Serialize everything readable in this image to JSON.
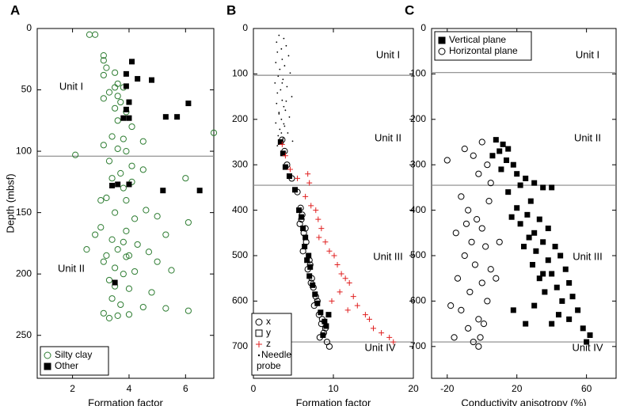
{
  "chart_data": [
    {
      "type": "scatter",
      "panel_label": "A",
      "xlabel": "Formation factor",
      "ylabel": "Depth (mbsf)",
      "xlim": [
        0.75,
        7
      ],
      "xticks": [
        2,
        4,
        6
      ],
      "ylim": [
        0,
        285
      ],
      "yticks": [
        0,
        50,
        100,
        150,
        200,
        250
      ],
      "y_inverted": true,
      "hlines": [
        104
      ],
      "annotations": [
        "Unit I",
        "Unit II"
      ],
      "legend": "lower left",
      "series": [
        {
          "name": "Silty clay",
          "color": "#2e7d32",
          "marker": "circle",
          "x": [
            2.6,
            2.8,
            3.1,
            3.1,
            3.2,
            3.1,
            3.5,
            3.6,
            3.5,
            3.8,
            3.3,
            3.6,
            3.1,
            3.7,
            3.5,
            3.9,
            3.6,
            4.1,
            7.0,
            3.4,
            3.8,
            4.5,
            3.1,
            3.6,
            2.1,
            3.9,
            3.3,
            4.1,
            4.5,
            3.7,
            3.4,
            4.1,
            6.0,
            3.2,
            3.9,
            4.6,
            3.5,
            4.2,
            5.0,
            6.1,
            3.0,
            3.9,
            5.3,
            3.4,
            3.8,
            4.3,
            2.5,
            3.6,
            4.7,
            3.2,
            3.9,
            5.0,
            3.1,
            3.5,
            4.2,
            3.8,
            5.5,
            3.3,
            4.0,
            4.8,
            3.4,
            3.7,
            4.5,
            5.3,
            6.1,
            3.1,
            3.6,
            4.0,
            3.3,
            2.8,
            3.0,
            3.8,
            4.0,
            3.5
          ],
          "values": [
            5,
            5,
            22,
            26,
            32,
            38,
            36,
            45,
            48,
            48,
            52,
            55,
            57,
            60,
            65,
            68,
            75,
            80,
            85,
            88,
            90,
            92,
            95,
            98,
            103,
            100,
            108,
            112,
            115,
            118,
            122,
            125,
            122,
            138,
            140,
            148,
            150,
            155,
            153,
            158,
            162,
            165,
            168,
            172,
            174,
            176,
            180,
            180,
            182,
            185,
            186,
            190,
            190,
            195,
            198,
            200,
            197,
            205,
            212,
            215,
            220,
            225,
            227,
            228,
            230,
            232,
            234,
            233,
            236,
            168,
            140,
            130,
            185,
            210
          ]
        },
        {
          "name": "Other",
          "color": "#000000",
          "marker": "square",
          "x": [
            4.1,
            3.9,
            4.3,
            4.8,
            3.9,
            4.0,
            3.9,
            5.3,
            5.7,
            3.8,
            4.0,
            6.1,
            3.6,
            4.0,
            5.2,
            6.5,
            3.5,
            3.4
          ],
          "values": [
            27,
            37,
            41,
            42,
            47,
            60,
            66,
            72,
            72,
            73,
            73,
            61,
            127,
            127,
            132,
            132,
            207,
            128
          ]
        }
      ]
    },
    {
      "type": "scatter",
      "panel_label": "B",
      "xlabel": "Formation factor",
      "xlim": [
        0,
        20
      ],
      "xticks": [
        0,
        10,
        20
      ],
      "ylim": [
        0,
        770
      ],
      "yticks": [
        0,
        100,
        200,
        300,
        400,
        500,
        600,
        700
      ],
      "y_inverted": true,
      "hlines": [
        103,
        345,
        690
      ],
      "annotations": [
        "Unit I",
        "Unit II",
        "Unit III",
        "Unit IV"
      ],
      "legend": "lower left",
      "series": [
        {
          "name": "x",
          "color": "#000000",
          "marker": "circle",
          "x": [
            3.6,
            3.9,
            4.2,
            4.8,
            5.5,
            5.9,
            6.1,
            5.8,
            6.3,
            6.6,
            6.2,
            7.0,
            6.8,
            7.3,
            7.5,
            7.8,
            7.6,
            8.2,
            8.5,
            8.8,
            9.2,
            9.5,
            6.0,
            6.5,
            7.1,
            7.2,
            8.0,
            8.6,
            9.0,
            8.3
          ],
          "values": [
            245,
            270,
            300,
            330,
            360,
            395,
            410,
            430,
            450,
            470,
            490,
            510,
            530,
            550,
            570,
            590,
            610,
            630,
            650,
            670,
            690,
            700,
            420,
            440,
            520,
            560,
            600,
            640,
            660,
            680
          ]
        },
        {
          "name": "y",
          "color": "#000000",
          "marker": "square",
          "x": [
            3.4,
            3.7,
            4.0,
            4.5,
            5.2,
            5.7,
            6.0,
            6.2,
            6.5,
            6.4,
            6.9,
            7.1,
            7.0,
            7.4,
            7.7,
            8.0,
            8.4,
            8.9,
            9.1,
            8.7,
            9.4,
            6.7
          ],
          "values": [
            250,
            275,
            305,
            325,
            355,
            400,
            415,
            440,
            460,
            480,
            500,
            525,
            545,
            565,
            585,
            605,
            625,
            645,
            655,
            675,
            630,
            510
          ]
        },
        {
          "name": "z",
          "color": "#e02020",
          "marker": "plus",
          "x": [
            3.6,
            4.0,
            4.6,
            5.5,
            6.8,
            7.0,
            6.5,
            7.2,
            7.8,
            8.1,
            8.5,
            8.2,
            9.0,
            9.5,
            10.1,
            10.5,
            11.0,
            11.5,
            12.0,
            10.8,
            12.5,
            13.0,
            14.0,
            14.5,
            15.0,
            16.0,
            17.0,
            17.5,
            9.8,
            11.8
          ],
          "values": [
            255,
            280,
            310,
            330,
            320,
            340,
            370,
            390,
            400,
            420,
            440,
            460,
            470,
            490,
            500,
            520,
            540,
            550,
            560,
            580,
            590,
            610,
            630,
            640,
            660,
            670,
            680,
            690,
            600,
            620
          ]
        },
        {
          "name": "Needle probe",
          "color": "#000000",
          "marker": "dot",
          "x": [
            3.2,
            3.8,
            2.9,
            4.1,
            3.5,
            3.0,
            4.4,
            3.6,
            2.8,
            3.9,
            3.3,
            4.6,
            3.1,
            3.7,
            2.7,
            4.2,
            3.4,
            3.0,
            4.8,
            3.6,
            2.9,
            3.8,
            4.0,
            3.2,
            4.5,
            3.5,
            2.8,
            3.9,
            3.3,
            4.3,
            3.1,
            3.7,
            4.9,
            3.4,
            3.0,
            3.6,
            4.1,
            3.2,
            3.8,
            3.5
          ],
          "values": [
            15,
            22,
            30,
            38,
            45,
            52,
            60,
            68,
            75,
            82,
            90,
            98,
            105,
            112,
            120,
            128,
            135,
            142,
            150,
            158,
            165,
            172,
            180,
            188,
            195,
            200,
            208,
            215,
            222,
            230,
            236,
            242,
            248,
            252,
            258,
            120,
            160,
            185,
            210,
            230
          ]
        }
      ]
    },
    {
      "type": "scatter",
      "panel_label": "C",
      "xlabel": "Conductivity anisotropy (%)",
      "xlim": [
        -29,
        77
      ],
      "xticks": [
        -20,
        20,
        60
      ],
      "ylim": [
        0,
        770
      ],
      "yticks": [
        0,
        100,
        200,
        300,
        400,
        500,
        600,
        700
      ],
      "y_inverted": true,
      "hlines": [
        97,
        345,
        690
      ],
      "annotations": [
        "Unit I",
        "Unit II",
        "Unit III",
        "Unit IV"
      ],
      "legend": "upper left",
      "series": [
        {
          "name": "Vertical plane",
          "color": "#000000",
          "marker": "square",
          "x": [
            8,
            12,
            15,
            10,
            6,
            14,
            18,
            11,
            20,
            25,
            30,
            22,
            35,
            40,
            15,
            28,
            20,
            26,
            33,
            22,
            38,
            30,
            27,
            35,
            42,
            31,
            45,
            38,
            29,
            48,
            40,
            33,
            50,
            43,
            36,
            52,
            46,
            30,
            55,
            44,
            50,
            40,
            58,
            62,
            60,
            18,
            25,
            35,
            24,
            17
          ],
          "values": [
            245,
            255,
            265,
            270,
            280,
            290,
            300,
            310,
            320,
            330,
            340,
            345,
            350,
            350,
            360,
            380,
            395,
            410,
            420,
            430,
            440,
            450,
            460,
            470,
            480,
            490,
            500,
            510,
            520,
            530,
            540,
            550,
            560,
            570,
            580,
            590,
            600,
            610,
            620,
            630,
            640,
            650,
            660,
            675,
            690,
            620,
            650,
            540,
            480,
            415
          ]
        },
        {
          "name": "Horizontal plane",
          "color": "#000000",
          "marker": "circle",
          "x": [
            -20,
            -10,
            -5,
            0,
            3,
            -2,
            5,
            -12,
            -8,
            -3,
            0,
            -15,
            -6,
            2,
            -10,
            -4,
            5,
            -14,
            0,
            -7,
            3,
            -12,
            -2,
            -8,
            -1,
            -2,
            -5,
            8,
            10,
            -18,
            4,
            -9,
            1,
            -16
          ],
          "values": [
            290,
            265,
            280,
            250,
            300,
            320,
            340,
            370,
            400,
            420,
            440,
            450,
            470,
            480,
            500,
            520,
            530,
            550,
            560,
            580,
            600,
            620,
            640,
            660,
            680,
            700,
            690,
            550,
            470,
            610,
            380,
            430,
            650,
            680
          ]
        }
      ]
    }
  ]
}
